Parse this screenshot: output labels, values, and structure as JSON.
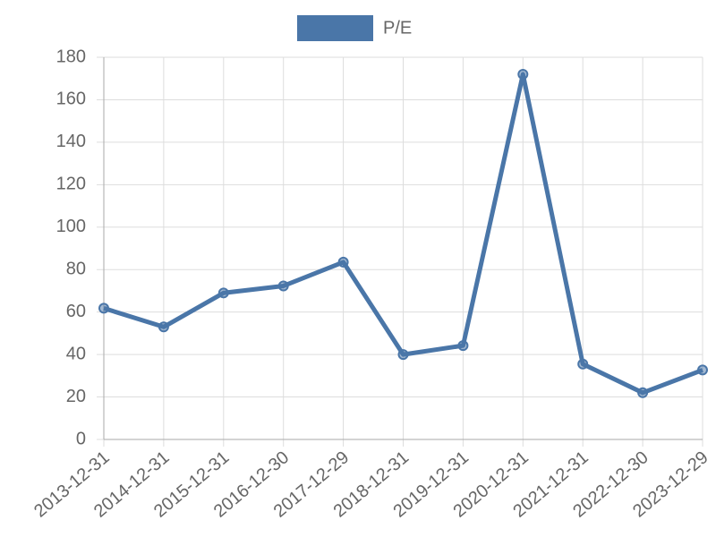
{
  "chart_data": {
    "type": "line",
    "categories": [
      "2013-12-31",
      "2014-12-31",
      "2015-12-31",
      "2016-12-30",
      "2017-12-29",
      "2018-12-31",
      "2019-12-31",
      "2020-12-31",
      "2021-12-31",
      "2022-12-30",
      "2023-12-29"
    ],
    "series": [
      {
        "name": "P/E",
        "color": "#4a76a8",
        "values": [
          61.8,
          53,
          69,
          72.3,
          83.5,
          40,
          44.2,
          172,
          35.5,
          22,
          32.7
        ]
      }
    ],
    "ylim": [
      0,
      180
    ],
    "yticks": [
      0,
      20,
      40,
      60,
      80,
      100,
      120,
      140,
      160,
      180
    ],
    "grid": true,
    "legend": "top"
  }
}
